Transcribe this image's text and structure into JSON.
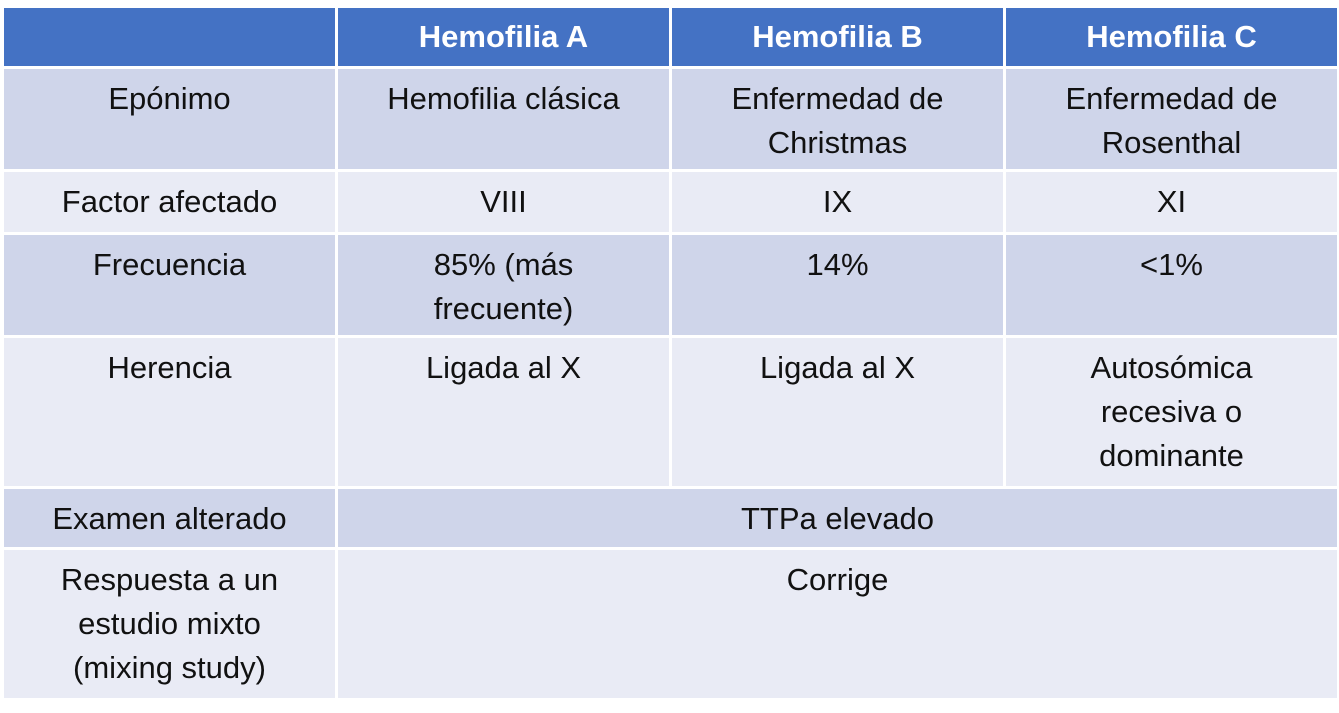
{
  "header": {
    "empty": "",
    "col_a": "Hemofilia A",
    "col_b": "Hemofilia B",
    "col_c": "Hemofilia C"
  },
  "rows": [
    {
      "label": "Epónimo",
      "a": [
        "Hemofilia clásica"
      ],
      "b": [
        "Enfermedad de",
        "Christmas"
      ],
      "c": [
        "Enfermedad de",
        "Rosenthal"
      ]
    },
    {
      "label": "Factor afectado",
      "a": [
        "VIII"
      ],
      "b": [
        "IX"
      ],
      "c": [
        "XI"
      ]
    },
    {
      "label": "Frecuencia",
      "a": [
        "85% (más",
        "frecuente)"
      ],
      "b": [
        "14%"
      ],
      "c": [
        "<1%"
      ]
    },
    {
      "label": "Herencia",
      "a": [
        "Ligada al X"
      ],
      "b": [
        "Ligada al X"
      ],
      "c": [
        "Autosómica",
        "recesiva o",
        "dominante"
      ]
    },
    {
      "label": "Examen alterado",
      "merged": [
        "TTPa elevado"
      ]
    },
    {
      "label_lines": [
        "Respuesta a un",
        "estudio mixto",
        "(mixing study)"
      ],
      "merged": [
        "Corrige"
      ]
    }
  ],
  "colors": {
    "header_bg": "#4472c4",
    "row_dark": "#cfd5ea",
    "row_light": "#e9ebf5",
    "border": "#ffffff"
  }
}
